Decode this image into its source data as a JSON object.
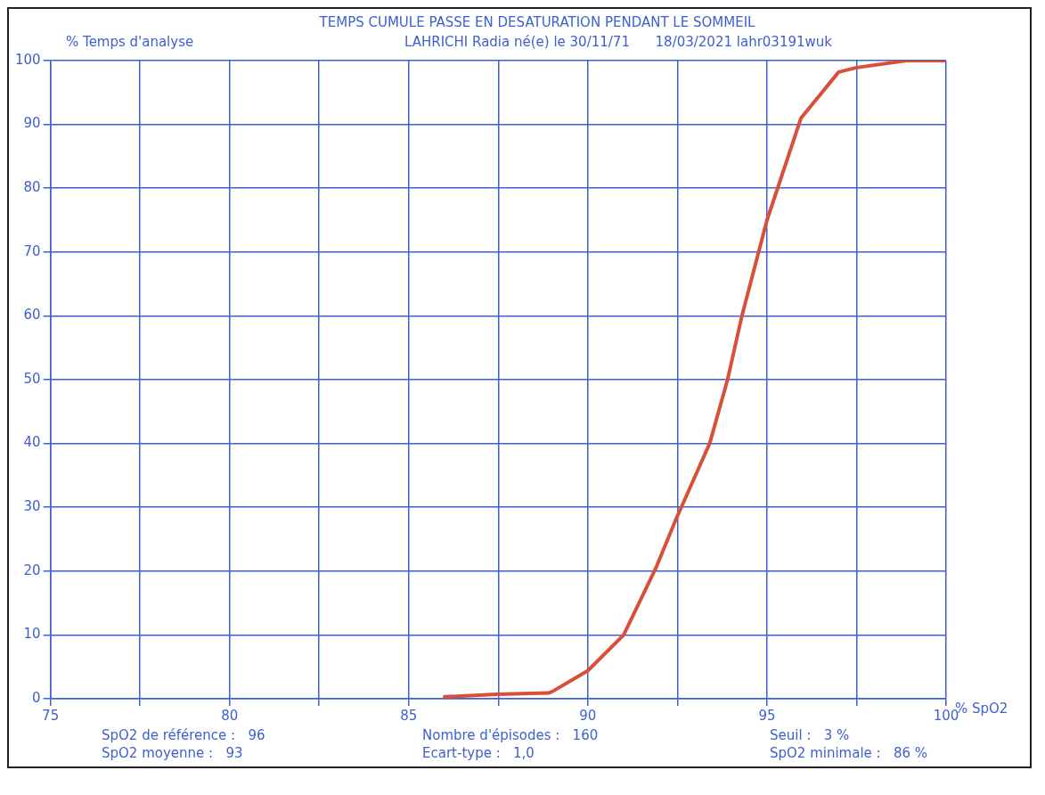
{
  "chart_data": {
    "type": "line",
    "title": "TEMPS CUMULE PASSE EN DESATURATION PENDANT LE SOMMEIL",
    "subtitle": "LAHRICHI Radia né(e) le 30/11/71      18/03/2021 lahr03191wuk",
    "xlabel": "% SpO2",
    "ylabel": "% Temps d'analyse",
    "series": [
      {
        "color": "#d9503a",
        "x": [
          86.0,
          87.45,
          88.9,
          89.0,
          90.0,
          91.0,
          91.9,
          92.45,
          93.4,
          93.9,
          94.3,
          95.0,
          95.95,
          97.0,
          97.5,
          98.9,
          100
        ],
        "values": [
          0.3,
          0.7,
          0.9,
          1.1,
          4.4,
          10,
          20.5,
          28,
          40,
          50,
          60,
          75,
          91,
          98.2,
          98.9,
          100,
          100
        ]
      }
    ],
    "xlim": [
      75,
      100
    ],
    "xticks": [
      75,
      {
        "value": 77.5,
        "label": null
      },
      80,
      {
        "value": 82.5,
        "label": null
      },
      85,
      {
        "value": 87.5,
        "label": null
      },
      90,
      {
        "value": 92.5,
        "label": null
      },
      95,
      {
        "value": 97.5,
        "label": null
      },
      100
    ],
    "ylim": [
      0,
      100
    ],
    "yticks": [
      0,
      10,
      20,
      30,
      40,
      50,
      60,
      70,
      80,
      90,
      100
    ],
    "grid": true,
    "marker": "none",
    "line_style": "solid",
    "annotations": [
      "SpO2 de référence :   96",
      "Nombre d'épisodes :   160",
      "Seuil :   3 %",
      "SpO2 moyenne :   93",
      "Ecart-type :   1,0",
      "SpO2 minimale :   86 %"
    ]
  }
}
